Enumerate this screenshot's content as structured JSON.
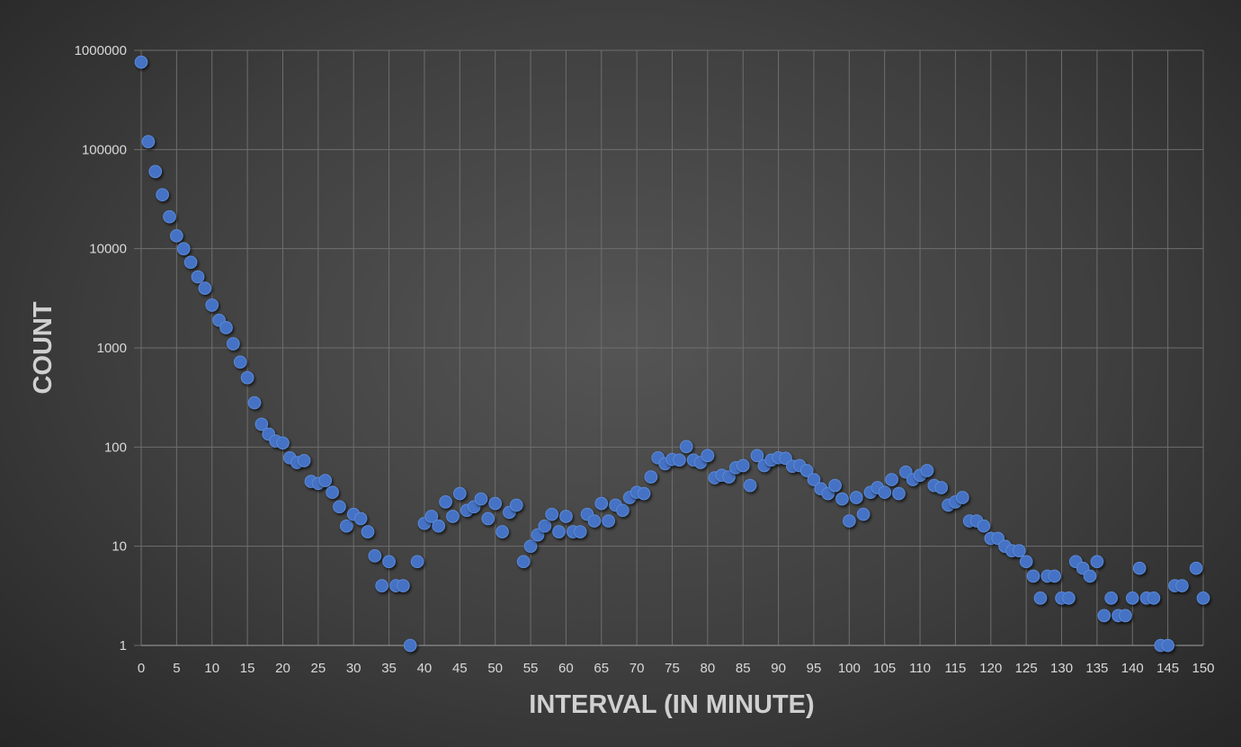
{
  "chart_data": {
    "type": "scatter",
    "title": "",
    "xlabel": "INTERVAL (IN MINUTE)",
    "ylabel": "COUNT",
    "xlim": [
      0,
      150
    ],
    "ylim": [
      1,
      1000000
    ],
    "y_scale": "log",
    "grid": true,
    "x_ticks": [
      0,
      5,
      10,
      15,
      20,
      25,
      30,
      35,
      40,
      45,
      50,
      55,
      60,
      65,
      70,
      75,
      80,
      85,
      90,
      95,
      100,
      105,
      110,
      115,
      120,
      125,
      130,
      135,
      140,
      145,
      150
    ],
    "y_ticks": [
      1,
      10,
      100,
      1000,
      10000,
      100000,
      1000000
    ],
    "colors": {
      "point": "#4472c4",
      "grid": "#6e6e6e",
      "text": "#d9d9d9"
    },
    "series": [
      {
        "x": [
          0,
          1,
          2,
          3,
          4,
          5,
          6,
          7,
          8,
          9,
          10,
          11,
          12,
          13,
          14,
          15,
          16,
          17,
          18,
          19,
          20,
          21,
          22,
          23,
          24,
          25,
          26,
          27,
          28,
          29,
          30,
          31,
          32,
          33,
          34,
          35,
          36,
          37,
          38,
          39,
          40,
          41,
          42,
          43,
          44,
          45,
          46,
          47,
          48,
          49,
          50,
          51,
          52,
          53,
          54,
          55,
          56,
          57,
          58,
          59,
          60,
          61,
          62,
          63,
          64,
          65,
          66,
          67,
          68,
          69,
          70,
          71,
          72,
          73,
          74,
          75,
          76,
          77,
          78,
          79,
          80,
          81,
          82,
          83,
          84,
          85,
          86,
          87,
          88,
          89,
          90,
          91,
          92,
          93,
          94,
          95,
          96,
          97,
          98,
          99,
          100,
          101,
          102,
          103,
          104,
          105,
          106,
          107,
          108,
          109,
          110,
          111,
          112,
          113,
          114,
          115,
          116,
          117,
          118,
          119,
          120,
          121,
          122,
          123,
          124,
          125,
          126,
          127,
          128,
          129,
          130,
          131,
          132,
          133,
          134,
          135,
          136,
          137,
          138,
          139,
          140,
          141,
          142,
          143,
          144,
          145,
          146,
          147,
          149,
          150
        ],
        "y": [
          760000,
          120000,
          60000,
          35000,
          21000,
          13500,
          10000,
          7300,
          5200,
          4000,
          2700,
          1900,
          1600,
          1100,
          720,
          500,
          280,
          170,
          135,
          115,
          110,
          78,
          70,
          73,
          45,
          43,
          46,
          35,
          25,
          16,
          21,
          19,
          14,
          8,
          4,
          7,
          4,
          4,
          1,
          7,
          17,
          20,
          16,
          28,
          20,
          34,
          23,
          25,
          30,
          19,
          27,
          14,
          22,
          26,
          7,
          10,
          13,
          16,
          21,
          14,
          20,
          14,
          14,
          21,
          18,
          27,
          18,
          26,
          23,
          31,
          35,
          34,
          50,
          78,
          68,
          75,
          74,
          101,
          74,
          70,
          82,
          49,
          52,
          50,
          62,
          65,
          41,
          82,
          65,
          74,
          78,
          77,
          64,
          65,
          58,
          47,
          38,
          34,
          41,
          30,
          18,
          31,
          21,
          35,
          39,
          35,
          47,
          34,
          56,
          47,
          52,
          58,
          41,
          39,
          26,
          28,
          31,
          18,
          18,
          16,
          12,
          12,
          10,
          9,
          9,
          7,
          5,
          3,
          5,
          5,
          3,
          3,
          7,
          6,
          5,
          7,
          2,
          3,
          2,
          2,
          3,
          6,
          3,
          3,
          1,
          1,
          4,
          4,
          6,
          3
        ]
      }
    ]
  }
}
